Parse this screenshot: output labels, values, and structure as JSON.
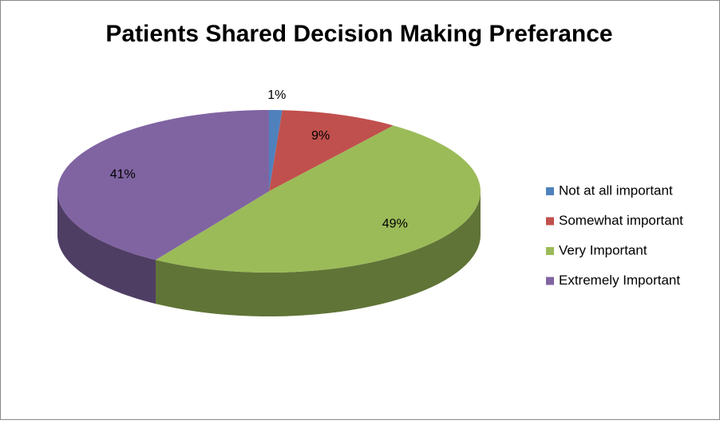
{
  "chart_data": {
    "type": "pie",
    "title": "Patients Shared Decision Making Preferance",
    "categories": [
      "Not at all important",
      "Somewhat important",
      "Very Important",
      "Extremely Important"
    ],
    "values": [
      1,
      9,
      49,
      41
    ],
    "value_labels": [
      "1%",
      "9%",
      "49%",
      "41%"
    ],
    "colors": [
      "#4f81bd",
      "#c0504d",
      "#9bbb59",
      "#8064a2"
    ],
    "legend": "right"
  }
}
